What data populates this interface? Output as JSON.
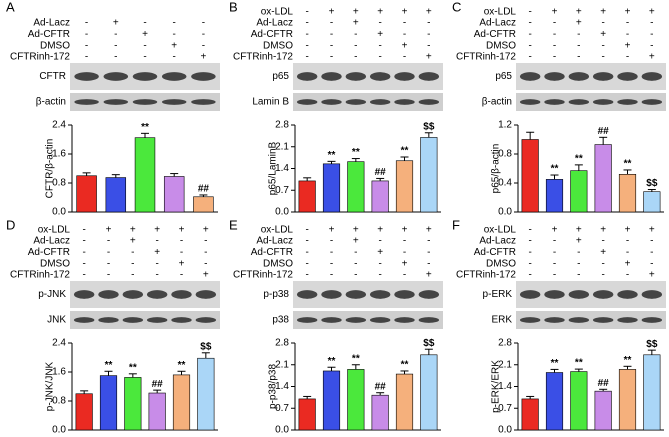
{
  "chart_data": [
    {
      "type": "bar",
      "panel": "A",
      "conditions": [
        {
          "label": "Ad-Lacz",
          "signs": [
            "-",
            "+",
            "-",
            "-",
            "-"
          ]
        },
        {
          "label": "Ad-CFTR",
          "signs": [
            "-",
            "-",
            "+",
            "-",
            "-"
          ]
        },
        {
          "label": "DMSO",
          "signs": [
            "-",
            "-",
            "-",
            "+",
            "-"
          ]
        },
        {
          "label": "CFTRinh-172",
          "signs": [
            "-",
            "-",
            "-",
            "-",
            "+"
          ]
        }
      ],
      "blots": [
        "CFTR",
        "β-actin"
      ],
      "ylabel": "CFTR/β-actin",
      "ylim": [
        0,
        2.4
      ],
      "yticks": [
        {
          "value": 0,
          "label": "0.0"
        },
        0.8,
        1.6,
        2.4
      ],
      "values": [
        1.0,
        0.95,
        2.05,
        0.98,
        0.42
      ],
      "errors": [
        0.08,
        0.08,
        0.12,
        0.08,
        0.05
      ],
      "annotations": [
        null,
        null,
        "**",
        null,
        "##"
      ],
      "colors": [
        "#ea2a22",
        "#3a4fe6",
        "#4be83c",
        "#c88ce8",
        "#f5b07c",
        "#aad6f7"
      ]
    },
    {
      "type": "bar",
      "panel": "B",
      "conditions": [
        {
          "label": "ox-LDL",
          "signs": [
            "-",
            "+",
            "+",
            "+",
            "+",
            "+"
          ]
        },
        {
          "label": "Ad-Lacz",
          "signs": [
            "-",
            "-",
            "+",
            "-",
            "-",
            "-"
          ]
        },
        {
          "label": "Ad-CFTR",
          "signs": [
            "-",
            "-",
            "-",
            "+",
            "-",
            "-"
          ]
        },
        {
          "label": "DMSO",
          "signs": [
            "-",
            "-",
            "-",
            "-",
            "+",
            "-"
          ]
        },
        {
          "label": "CFTRinh-172",
          "signs": [
            "-",
            "-",
            "-",
            "-",
            "-",
            "+"
          ]
        }
      ],
      "blots": [
        "p65",
        "Lamin B"
      ],
      "ylabel": "p65/LaminB",
      "ylim": [
        0,
        2.8
      ],
      "yticks": [
        {
          "value": 0,
          "label": "0.0"
        },
        0.7,
        1.4,
        2.1,
        2.8
      ],
      "values": [
        1.0,
        1.55,
        1.62,
        1.0,
        1.65,
        2.4
      ],
      "errors": [
        0.1,
        0.08,
        0.1,
        0.08,
        0.12,
        0.15
      ],
      "annotations": [
        null,
        "**",
        "**",
        "##",
        "**",
        "$$"
      ],
      "colors": [
        "#ea2a22",
        "#3a4fe6",
        "#4be83c",
        "#c88ce8",
        "#f5b07c",
        "#aad6f7"
      ]
    },
    {
      "type": "bar",
      "panel": "C",
      "conditions": [
        {
          "label": "ox-LDL",
          "signs": [
            "-",
            "+",
            "+",
            "+",
            "+",
            "+"
          ]
        },
        {
          "label": "Ad-Lacz",
          "signs": [
            "-",
            "-",
            "+",
            "-",
            "-",
            "-"
          ]
        },
        {
          "label": "Ad-CFTR",
          "signs": [
            "-",
            "-",
            "-",
            "+",
            "-",
            "-"
          ]
        },
        {
          "label": "DMSO",
          "signs": [
            "-",
            "-",
            "-",
            "-",
            "+",
            "-"
          ]
        },
        {
          "label": "CFTRinh-172",
          "signs": [
            "-",
            "-",
            "-",
            "-",
            "-",
            "+"
          ]
        }
      ],
      "blots": [
        "p65",
        "β-actin"
      ],
      "ylabel": "p65/β-actin",
      "ylim": [
        0,
        1.2
      ],
      "yticks": [
        {
          "value": 0,
          "label": "0.0"
        },
        0.4,
        0.8,
        1.2
      ],
      "values": [
        1.0,
        0.45,
        0.57,
        0.93,
        0.52,
        0.28
      ],
      "errors": [
        0.1,
        0.06,
        0.08,
        0.1,
        0.06,
        0.03
      ],
      "annotations": [
        null,
        "**",
        "**",
        "##",
        "**",
        "$$"
      ],
      "colors": [
        "#ea2a22",
        "#3a4fe6",
        "#4be83c",
        "#c88ce8",
        "#f5b07c",
        "#aad6f7"
      ]
    },
    {
      "type": "bar",
      "panel": "D",
      "conditions": [
        {
          "label": "ox-LDL",
          "signs": [
            "-",
            "+",
            "+",
            "+",
            "+",
            "+"
          ]
        },
        {
          "label": "Ad-Lacz",
          "signs": [
            "-",
            "-",
            "+",
            "-",
            "-",
            "-"
          ]
        },
        {
          "label": "Ad-CFTR",
          "signs": [
            "-",
            "-",
            "-",
            "+",
            "-",
            "-"
          ]
        },
        {
          "label": "DMSO",
          "signs": [
            "-",
            "-",
            "-",
            "-",
            "+",
            "-"
          ]
        },
        {
          "label": "CFTRinh-172",
          "signs": [
            "-",
            "-",
            "-",
            "-",
            "-",
            "+"
          ]
        }
      ],
      "blots": [
        "p-JNK",
        "JNK"
      ],
      "ylabel": "p-JNK/JNK",
      "ylim": [
        0,
        2.4
      ],
      "yticks": [
        {
          "value": 0,
          "label": "0.0"
        },
        0.8,
        1.6,
        2.4
      ],
      "values": [
        1.0,
        1.5,
        1.45,
        1.02,
        1.52,
        1.98
      ],
      "errors": [
        0.08,
        0.12,
        0.1,
        0.08,
        0.1,
        0.15
      ],
      "annotations": [
        null,
        "**",
        "**",
        "##",
        "**",
        "$$"
      ],
      "colors": [
        "#ea2a22",
        "#3a4fe6",
        "#4be83c",
        "#c88ce8",
        "#f5b07c",
        "#aad6f7"
      ]
    },
    {
      "type": "bar",
      "panel": "E",
      "conditions": [
        {
          "label": "ox-LDL",
          "signs": [
            "-",
            "+",
            "+",
            "+",
            "+",
            "+"
          ]
        },
        {
          "label": "Ad-Lacz",
          "signs": [
            "-",
            "-",
            "+",
            "-",
            "-",
            "-"
          ]
        },
        {
          "label": "Ad-CFTR",
          "signs": [
            "-",
            "-",
            "-",
            "+",
            "-",
            "-"
          ]
        },
        {
          "label": "DMSO",
          "signs": [
            "-",
            "-",
            "-",
            "-",
            "+",
            "-"
          ]
        },
        {
          "label": "CFTRinh-172",
          "signs": [
            "-",
            "-",
            "-",
            "-",
            "-",
            "+"
          ]
        }
      ],
      "blots": [
        "p-p38",
        "p38"
      ],
      "ylabel": "p-p38/p38",
      "ylim": [
        0,
        2.8
      ],
      "yticks": [
        {
          "value": 0,
          "label": "0.0"
        },
        0.7,
        1.4,
        2.1,
        2.8
      ],
      "values": [
        1.0,
        1.9,
        1.95,
        1.12,
        1.8,
        2.42
      ],
      "errors": [
        0.08,
        0.12,
        0.15,
        0.08,
        0.1,
        0.18
      ],
      "annotations": [
        null,
        "**",
        "**",
        "##",
        "**",
        "$$"
      ],
      "colors": [
        "#ea2a22",
        "#3a4fe6",
        "#4be83c",
        "#c88ce8",
        "#f5b07c",
        "#aad6f7"
      ]
    },
    {
      "type": "bar",
      "panel": "F",
      "conditions": [
        {
          "label": "ox-LDL",
          "signs": [
            "-",
            "+",
            "+",
            "+",
            "+",
            "+"
          ]
        },
        {
          "label": "Ad-Lacz",
          "signs": [
            "-",
            "-",
            "+",
            "-",
            "-",
            "-"
          ]
        },
        {
          "label": "Ad-CFTR",
          "signs": [
            "-",
            "-",
            "-",
            "+",
            "-",
            "-"
          ]
        },
        {
          "label": "DMSO",
          "signs": [
            "-",
            "-",
            "-",
            "-",
            "+",
            "-"
          ]
        },
        {
          "label": "CFTRinh-172",
          "signs": [
            "-",
            "-",
            "-",
            "-",
            "-",
            "+"
          ]
        }
      ],
      "blots": [
        "p-ERK",
        "ERK"
      ],
      "ylabel": "p-ERK/ERK",
      "ylim": [
        0,
        2.8
      ],
      "yticks": [
        {
          "value": 0,
          "label": "0.0"
        },
        0.7,
        1.4,
        2.1,
        2.8
      ],
      "values": [
        1.0,
        1.85,
        1.88,
        1.25,
        1.95,
        2.42
      ],
      "errors": [
        0.08,
        0.1,
        0.08,
        0.06,
        0.1,
        0.15
      ],
      "annotations": [
        null,
        "**",
        "**",
        "##",
        "**",
        "$$"
      ],
      "colors": [
        "#ea2a22",
        "#3a4fe6",
        "#4be83c",
        "#c88ce8",
        "#f5b07c",
        "#aad6f7"
      ]
    }
  ]
}
